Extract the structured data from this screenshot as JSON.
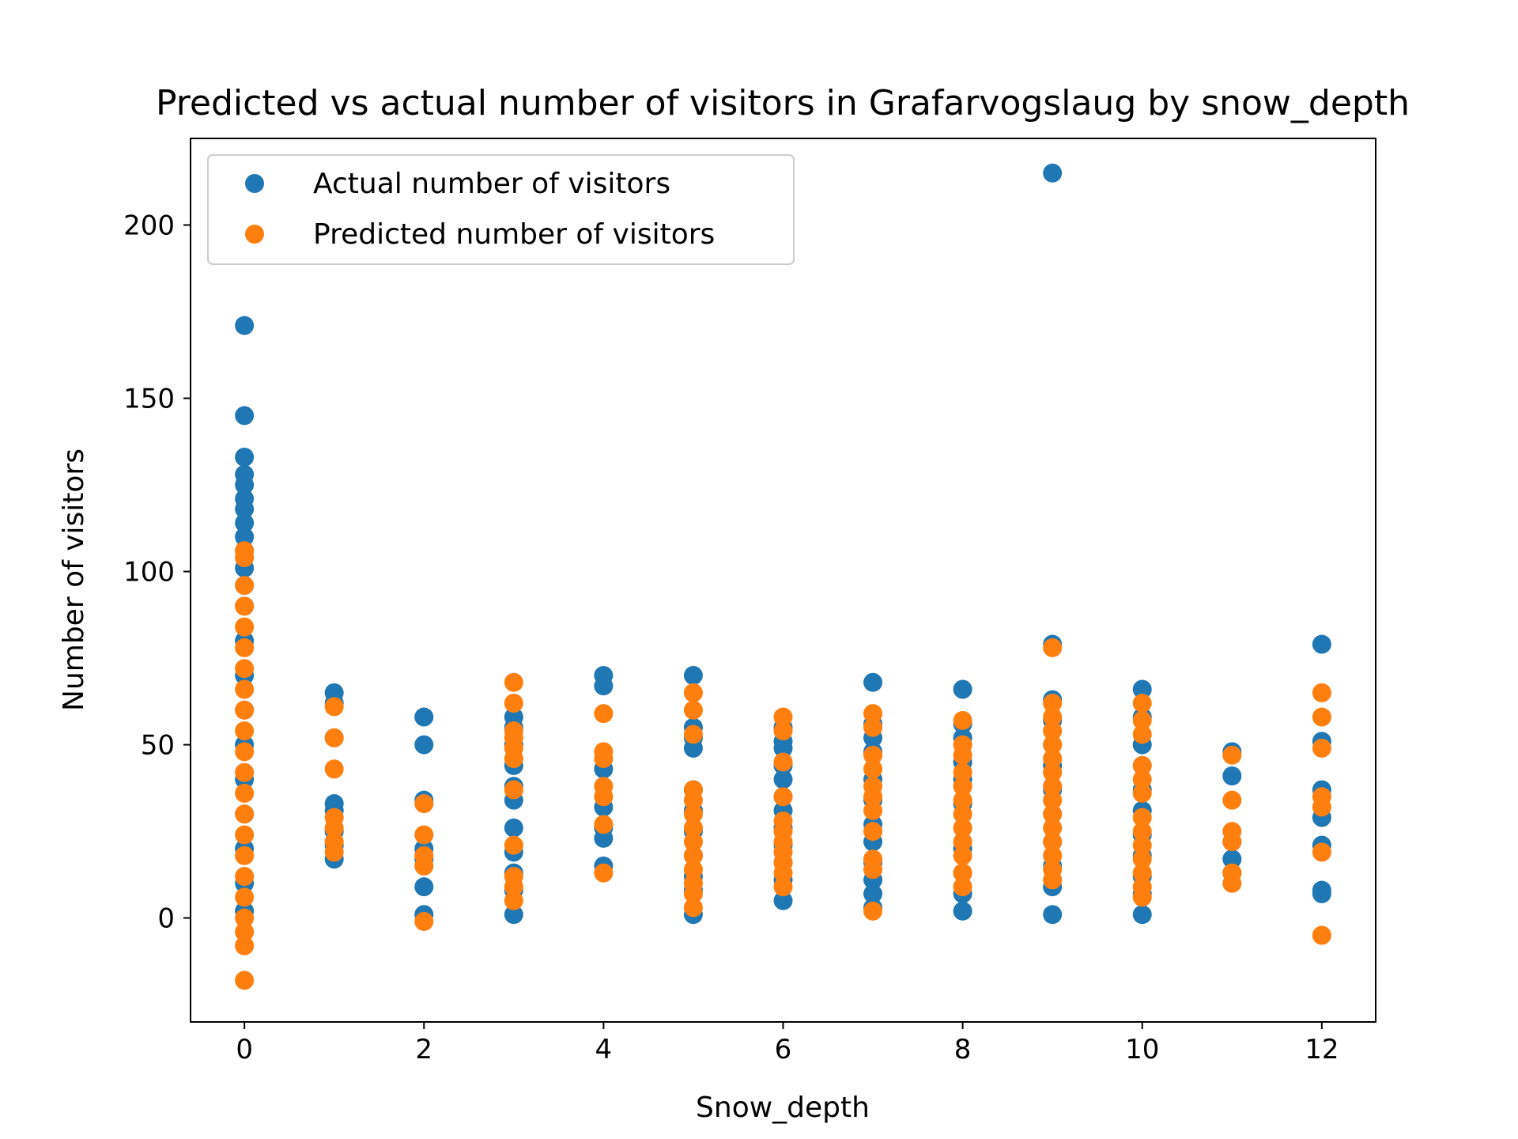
{
  "chart_data": {
    "type": "scatter",
    "title": "Predicted vs actual number of visitors in Grafarvogslaug by snow_depth",
    "xlabel": "Snow_depth",
    "ylabel": "Number of visitors",
    "xlim": [
      -0.6,
      12.6
    ],
    "ylim": [
      -30,
      225
    ],
    "xticks": [
      0,
      2,
      4,
      6,
      8,
      10,
      12
    ],
    "xtick_labels": [
      "0",
      "2",
      "4",
      "6",
      "8",
      "10",
      "12"
    ],
    "yticks": [
      0,
      50,
      100,
      150,
      200
    ],
    "ytick_labels": [
      "0",
      "50",
      "100",
      "150",
      "200"
    ],
    "grid": false,
    "legend_position": "upper-left",
    "series": [
      {
        "name": "Actual number of visitors",
        "color": "#1f77b4",
        "points": [
          [
            0,
            171
          ],
          [
            0,
            145
          ],
          [
            0,
            133
          ],
          [
            0,
            128
          ],
          [
            0,
            125
          ],
          [
            0,
            121
          ],
          [
            0,
            118
          ],
          [
            0,
            114
          ],
          [
            0,
            110
          ],
          [
            0,
            106
          ],
          [
            0,
            101
          ],
          [
            0,
            96
          ],
          [
            0,
            90
          ],
          [
            0,
            80
          ],
          [
            0,
            70
          ],
          [
            0,
            60
          ],
          [
            0,
            50
          ],
          [
            0,
            40
          ],
          [
            0,
            30
          ],
          [
            0,
            20
          ],
          [
            0,
            10
          ],
          [
            0,
            2
          ],
          [
            1,
            65
          ],
          [
            1,
            62
          ],
          [
            1,
            52
          ],
          [
            1,
            33
          ],
          [
            1,
            31
          ],
          [
            1,
            25
          ],
          [
            1,
            21
          ],
          [
            1,
            17
          ],
          [
            2,
            58
          ],
          [
            2,
            50
          ],
          [
            2,
            34
          ],
          [
            2,
            20
          ],
          [
            2,
            17
          ],
          [
            2,
            9
          ],
          [
            2,
            1
          ],
          [
            3,
            58
          ],
          [
            3,
            55
          ],
          [
            3,
            50
          ],
          [
            3,
            44
          ],
          [
            3,
            38
          ],
          [
            3,
            34
          ],
          [
            3,
            26
          ],
          [
            3,
            19
          ],
          [
            3,
            13
          ],
          [
            3,
            8
          ],
          [
            3,
            1
          ],
          [
            4,
            70
          ],
          [
            4,
            67
          ],
          [
            4,
            43
          ],
          [
            4,
            32
          ],
          [
            4,
            26
          ],
          [
            4,
            23
          ],
          [
            4,
            15
          ],
          [
            5,
            70
          ],
          [
            5,
            55
          ],
          [
            5,
            52
          ],
          [
            5,
            49
          ],
          [
            5,
            37
          ],
          [
            5,
            31
          ],
          [
            5,
            25
          ],
          [
            5,
            18
          ],
          [
            5,
            12
          ],
          [
            5,
            8
          ],
          [
            5,
            1
          ],
          [
            6,
            55
          ],
          [
            6,
            51
          ],
          [
            6,
            49
          ],
          [
            6,
            44
          ],
          [
            6,
            40
          ],
          [
            6,
            35
          ],
          [
            6,
            31
          ],
          [
            6,
            26
          ],
          [
            6,
            21
          ],
          [
            6,
            16
          ],
          [
            6,
            11
          ],
          [
            6,
            5
          ],
          [
            7,
            68
          ],
          [
            7,
            56
          ],
          [
            7,
            52
          ],
          [
            7,
            48
          ],
          [
            7,
            40
          ],
          [
            7,
            34
          ],
          [
            7,
            27
          ],
          [
            7,
            22
          ],
          [
            7,
            16
          ],
          [
            7,
            11
          ],
          [
            7,
            7
          ],
          [
            7,
            3
          ],
          [
            8,
            66
          ],
          [
            8,
            56
          ],
          [
            8,
            52
          ],
          [
            8,
            45
          ],
          [
            8,
            40
          ],
          [
            8,
            33
          ],
          [
            8,
            26
          ],
          [
            8,
            20
          ],
          [
            8,
            13
          ],
          [
            8,
            7
          ],
          [
            8,
            2
          ],
          [
            9,
            215
          ],
          [
            9,
            79
          ],
          [
            9,
            63
          ],
          [
            9,
            57
          ],
          [
            9,
            50
          ],
          [
            9,
            44
          ],
          [
            9,
            37
          ],
          [
            9,
            30
          ],
          [
            9,
            22
          ],
          [
            9,
            15
          ],
          [
            9,
            9
          ],
          [
            9,
            1
          ],
          [
            10,
            66
          ],
          [
            10,
            58
          ],
          [
            10,
            50
          ],
          [
            10,
            44
          ],
          [
            10,
            37
          ],
          [
            10,
            31
          ],
          [
            10,
            24
          ],
          [
            10,
            18
          ],
          [
            10,
            12
          ],
          [
            10,
            7
          ],
          [
            10,
            1
          ],
          [
            11,
            48
          ],
          [
            11,
            41
          ],
          [
            11,
            22
          ],
          [
            11,
            17
          ],
          [
            11,
            13
          ],
          [
            12,
            79
          ],
          [
            12,
            51
          ],
          [
            12,
            37
          ],
          [
            12,
            29
          ],
          [
            12,
            21
          ],
          [
            12,
            8
          ],
          [
            12,
            7
          ]
        ]
      },
      {
        "name": "Predicted number of visitors",
        "color": "#ff7f0e",
        "points": [
          [
            0,
            106
          ],
          [
            0,
            104
          ],
          [
            0,
            96
          ],
          [
            0,
            90
          ],
          [
            0,
            84
          ],
          [
            0,
            78
          ],
          [
            0,
            72
          ],
          [
            0,
            66
          ],
          [
            0,
            60
          ],
          [
            0,
            54
          ],
          [
            0,
            48
          ],
          [
            0,
            42
          ],
          [
            0,
            36
          ],
          [
            0,
            30
          ],
          [
            0,
            24
          ],
          [
            0,
            18
          ],
          [
            0,
            12
          ],
          [
            0,
            6
          ],
          [
            0,
            0
          ],
          [
            0,
            -4
          ],
          [
            0,
            -8
          ],
          [
            0,
            -18
          ],
          [
            1,
            61
          ],
          [
            1,
            52
          ],
          [
            1,
            43
          ],
          [
            1,
            29
          ],
          [
            1,
            26
          ],
          [
            1,
            22
          ],
          [
            1,
            19
          ],
          [
            2,
            33
          ],
          [
            2,
            24
          ],
          [
            2,
            18
          ],
          [
            2,
            15
          ],
          [
            2,
            -1
          ],
          [
            3,
            68
          ],
          [
            3,
            62
          ],
          [
            3,
            54
          ],
          [
            3,
            52
          ],
          [
            3,
            49
          ],
          [
            3,
            46
          ],
          [
            3,
            37
          ],
          [
            3,
            21
          ],
          [
            3,
            12
          ],
          [
            3,
            9
          ],
          [
            3,
            5
          ],
          [
            4,
            59
          ],
          [
            4,
            48
          ],
          [
            4,
            46
          ],
          [
            4,
            38
          ],
          [
            4,
            35
          ],
          [
            4,
            27
          ],
          [
            4,
            13
          ],
          [
            5,
            65
          ],
          [
            5,
            60
          ],
          [
            5,
            53
          ],
          [
            5,
            37
          ],
          [
            5,
            34
          ],
          [
            5,
            30
          ],
          [
            5,
            26
          ],
          [
            5,
            22
          ],
          [
            5,
            18
          ],
          [
            5,
            14
          ],
          [
            5,
            10
          ],
          [
            5,
            7
          ],
          [
            5,
            3
          ],
          [
            6,
            58
          ],
          [
            6,
            54
          ],
          [
            6,
            45
          ],
          [
            6,
            35
          ],
          [
            6,
            28
          ],
          [
            6,
            25
          ],
          [
            6,
            22
          ],
          [
            6,
            19
          ],
          [
            6,
            16
          ],
          [
            6,
            13
          ],
          [
            6,
            9
          ],
          [
            7,
            59
          ],
          [
            7,
            55
          ],
          [
            7,
            47
          ],
          [
            7,
            43
          ],
          [
            7,
            38
          ],
          [
            7,
            35
          ],
          [
            7,
            31
          ],
          [
            7,
            25
          ],
          [
            7,
            17
          ],
          [
            7,
            14
          ],
          [
            7,
            2
          ],
          [
            8,
            57
          ],
          [
            8,
            50
          ],
          [
            8,
            47
          ],
          [
            8,
            42
          ],
          [
            8,
            38
          ],
          [
            8,
            34
          ],
          [
            8,
            30
          ],
          [
            8,
            26
          ],
          [
            8,
            22
          ],
          [
            8,
            18
          ],
          [
            8,
            13
          ],
          [
            8,
            9
          ],
          [
            9,
            78
          ],
          [
            9,
            62
          ],
          [
            9,
            58
          ],
          [
            9,
            54
          ],
          [
            9,
            50
          ],
          [
            9,
            46
          ],
          [
            9,
            42
          ],
          [
            9,
            38
          ],
          [
            9,
            34
          ],
          [
            9,
            30
          ],
          [
            9,
            26
          ],
          [
            9,
            22
          ],
          [
            9,
            18
          ],
          [
            9,
            14
          ],
          [
            9,
            11
          ],
          [
            10,
            62
          ],
          [
            10,
            57
          ],
          [
            10,
            53
          ],
          [
            10,
            44
          ],
          [
            10,
            40
          ],
          [
            10,
            36
          ],
          [
            10,
            29
          ],
          [
            10,
            25
          ],
          [
            10,
            21
          ],
          [
            10,
            17
          ],
          [
            10,
            13
          ],
          [
            10,
            9
          ],
          [
            10,
            6
          ],
          [
            11,
            47
          ],
          [
            11,
            34
          ],
          [
            11,
            25
          ],
          [
            11,
            22
          ],
          [
            11,
            13
          ],
          [
            11,
            10
          ],
          [
            12,
            65
          ],
          [
            12,
            58
          ],
          [
            12,
            49
          ],
          [
            12,
            35
          ],
          [
            12,
            32
          ],
          [
            12,
            19
          ],
          [
            12,
            -5
          ]
        ]
      }
    ]
  }
}
